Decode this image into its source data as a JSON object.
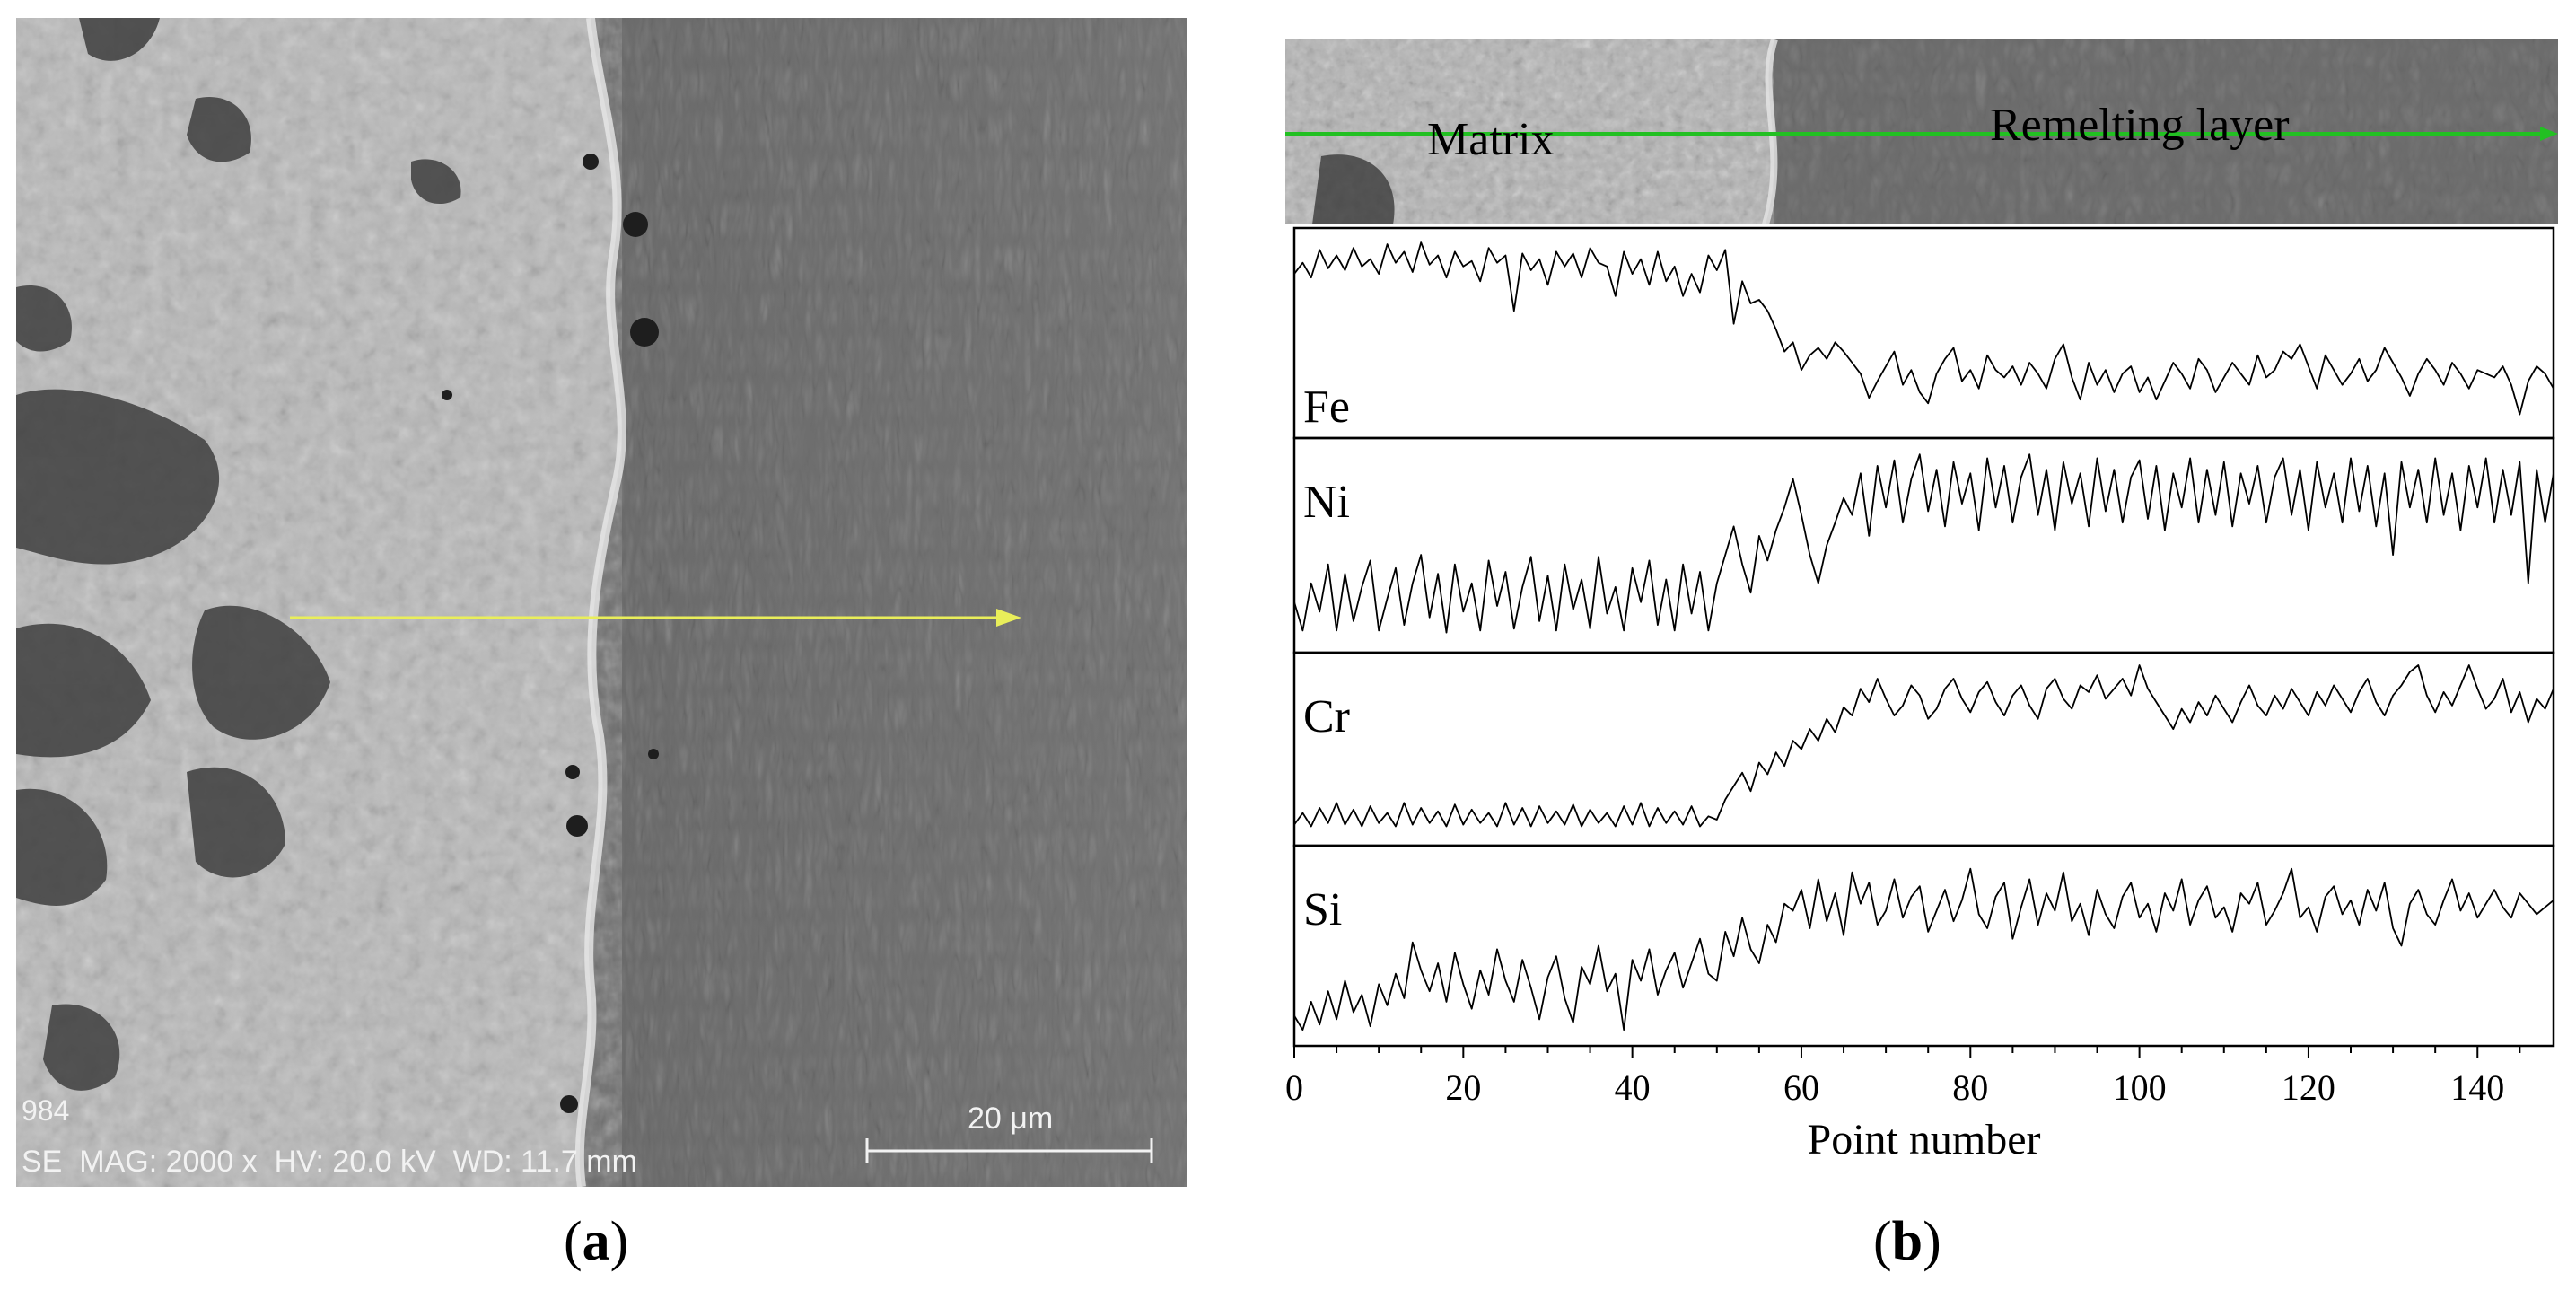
{
  "panel_a": {
    "label_open": "(",
    "label_letter": "a",
    "label_close": ")",
    "sem_info_id": "984",
    "sem_info_line": "SE  MAG: 2000 x  HV: 20.0 kV  WD: 11.7 mm",
    "scale_bar_label": "20 μm"
  },
  "panel_b": {
    "label_open": "(",
    "label_letter": "b",
    "label_close": ")",
    "region_left": "Matrix",
    "region_right": "Remelting layer",
    "scan_line_color": "#22c022"
  },
  "chart_data": {
    "type": "line",
    "xlabel": "Point number",
    "xlim": [
      0,
      149
    ],
    "xticks": [
      0,
      20,
      40,
      60,
      80,
      100,
      120,
      140
    ],
    "grid": false,
    "stacked_panels": true,
    "series": [
      {
        "name": "Fe",
        "values": [
          0.82,
          0.88,
          0.8,
          0.95,
          0.85,
          0.92,
          0.84,
          0.96,
          0.86,
          0.9,
          0.82,
          0.98,
          0.88,
          0.94,
          0.83,
          0.99,
          0.87,
          0.92,
          0.8,
          0.94,
          0.86,
          0.89,
          0.78,
          0.96,
          0.88,
          0.92,
          0.62,
          0.93,
          0.84,
          0.9,
          0.76,
          0.94,
          0.86,
          0.93,
          0.8,
          0.96,
          0.88,
          0.86,
          0.7,
          0.94,
          0.82,
          0.9,
          0.76,
          0.94,
          0.78,
          0.86,
          0.7,
          0.82,
          0.72,
          0.92,
          0.84,
          0.95,
          0.55,
          0.78,
          0.66,
          0.68,
          0.62,
          0.52,
          0.4,
          0.45,
          0.3,
          0.38,
          0.42,
          0.36,
          0.45,
          0.4,
          0.34,
          0.28,
          0.15,
          0.24,
          0.32,
          0.4,
          0.22,
          0.3,
          0.18,
          0.12,
          0.28,
          0.36,
          0.42,
          0.24,
          0.3,
          0.2,
          0.38,
          0.3,
          0.26,
          0.32,
          0.22,
          0.34,
          0.28,
          0.2,
          0.36,
          0.44,
          0.26,
          0.14,
          0.34,
          0.22,
          0.3,
          0.18,
          0.28,
          0.32,
          0.18,
          0.26,
          0.14,
          0.24,
          0.34,
          0.28,
          0.2,
          0.36,
          0.3,
          0.18,
          0.26,
          0.34,
          0.28,
          0.22,
          0.38,
          0.26,
          0.3,
          0.4,
          0.36,
          0.44,
          0.32,
          0.2,
          0.38,
          0.3,
          0.22,
          0.28,
          0.36,
          0.24,
          0.3,
          0.42,
          0.34,
          0.26,
          0.16,
          0.28,
          0.36,
          0.3,
          0.22,
          0.34,
          0.28,
          0.2,
          0.3,
          0.28,
          0.26,
          0.32,
          0.22,
          0.06,
          0.24,
          0.32,
          0.28,
          0.2
        ]
      },
      {
        "name": "Ni",
        "values": [
          0.2,
          0.05,
          0.3,
          0.15,
          0.4,
          0.05,
          0.35,
          0.1,
          0.28,
          0.42,
          0.05,
          0.22,
          0.38,
          0.08,
          0.3,
          0.45,
          0.12,
          0.35,
          0.04,
          0.4,
          0.15,
          0.3,
          0.05,
          0.42,
          0.18,
          0.36,
          0.06,
          0.28,
          0.44,
          0.1,
          0.34,
          0.05,
          0.4,
          0.16,
          0.32,
          0.06,
          0.44,
          0.14,
          0.28,
          0.05,
          0.38,
          0.2,
          0.42,
          0.08,
          0.32,
          0.05,
          0.4,
          0.14,
          0.36,
          0.05,
          0.3,
          0.45,
          0.6,
          0.4,
          0.25,
          0.55,
          0.42,
          0.58,
          0.7,
          0.85,
          0.66,
          0.45,
          0.3,
          0.5,
          0.62,
          0.75,
          0.66,
          0.88,
          0.55,
          0.92,
          0.7,
          0.95,
          0.62,
          0.85,
          0.98,
          0.68,
          0.9,
          0.6,
          0.94,
          0.72,
          0.88,
          0.58,
          0.96,
          0.7,
          0.92,
          0.62,
          0.86,
          0.98,
          0.66,
          0.9,
          0.58,
          0.94,
          0.72,
          0.88,
          0.6,
          0.96,
          0.68,
          0.9,
          0.62,
          0.86,
          0.95,
          0.64,
          0.92,
          0.58,
          0.88,
          0.7,
          0.96,
          0.62,
          0.9,
          0.66,
          0.94,
          0.6,
          0.88,
          0.72,
          0.92,
          0.62,
          0.86,
          0.96,
          0.66,
          0.9,
          0.58,
          0.94,
          0.7,
          0.88,
          0.62,
          0.96,
          0.68,
          0.92,
          0.6,
          0.88,
          0.45,
          0.94,
          0.7,
          0.9,
          0.62,
          0.96,
          0.66,
          0.88,
          0.58,
          0.92,
          0.7,
          0.96,
          0.62,
          0.9,
          0.66,
          0.94,
          0.3,
          0.9,
          0.62,
          0.88
        ]
      },
      {
        "name": "Cr",
        "values": [
          0.05,
          0.12,
          0.04,
          0.15,
          0.06,
          0.18,
          0.05,
          0.14,
          0.04,
          0.16,
          0.06,
          0.12,
          0.04,
          0.18,
          0.05,
          0.15,
          0.06,
          0.13,
          0.04,
          0.17,
          0.05,
          0.14,
          0.06,
          0.12,
          0.04,
          0.18,
          0.05,
          0.15,
          0.04,
          0.16,
          0.06,
          0.13,
          0.05,
          0.17,
          0.04,
          0.14,
          0.06,
          0.12,
          0.04,
          0.16,
          0.05,
          0.18,
          0.04,
          0.15,
          0.06,
          0.13,
          0.05,
          0.16,
          0.04,
          0.1,
          0.08,
          0.2,
          0.28,
          0.36,
          0.25,
          0.42,
          0.35,
          0.48,
          0.4,
          0.55,
          0.5,
          0.62,
          0.55,
          0.68,
          0.6,
          0.75,
          0.7,
          0.86,
          0.78,
          0.92,
          0.8,
          0.7,
          0.76,
          0.88,
          0.82,
          0.68,
          0.74,
          0.86,
          0.92,
          0.8,
          0.72,
          0.84,
          0.9,
          0.78,
          0.7,
          0.82,
          0.88,
          0.76,
          0.68,
          0.86,
          0.92,
          0.8,
          0.74,
          0.88,
          0.84,
          0.94,
          0.8,
          0.86,
          0.92,
          0.82,
          1.0,
          0.86,
          0.78,
          0.7,
          0.62,
          0.74,
          0.66,
          0.78,
          0.7,
          0.82,
          0.74,
          0.66,
          0.78,
          0.88,
          0.76,
          0.7,
          0.82,
          0.74,
          0.86,
          0.78,
          0.7,
          0.84,
          0.76,
          0.88,
          0.8,
          0.72,
          0.84,
          0.92,
          0.78,
          0.7,
          0.82,
          0.88,
          0.96,
          1.0,
          0.82,
          0.72,
          0.84,
          0.76,
          0.88,
          1.0,
          0.86,
          0.74,
          0.8,
          0.92,
          0.72,
          0.84,
          0.66,
          0.8,
          0.74,
          0.86
        ]
      },
      {
        "name": "Si",
        "values": [
          0.1,
          0.02,
          0.18,
          0.05,
          0.24,
          0.08,
          0.3,
          0.12,
          0.22,
          0.04,
          0.28,
          0.16,
          0.34,
          0.2,
          0.52,
          0.36,
          0.24,
          0.4,
          0.18,
          0.46,
          0.28,
          0.14,
          0.36,
          0.22,
          0.48,
          0.3,
          0.18,
          0.42,
          0.26,
          0.08,
          0.32,
          0.44,
          0.2,
          0.06,
          0.38,
          0.28,
          0.5,
          0.24,
          0.34,
          0.02,
          0.42,
          0.3,
          0.48,
          0.22,
          0.36,
          0.46,
          0.26,
          0.4,
          0.54,
          0.34,
          0.3,
          0.58,
          0.44,
          0.66,
          0.48,
          0.4,
          0.62,
          0.52,
          0.74,
          0.7,
          0.82,
          0.6,
          0.88,
          0.64,
          0.8,
          0.56,
          0.92,
          0.74,
          0.86,
          0.62,
          0.7,
          0.88,
          0.66,
          0.78,
          0.84,
          0.58,
          0.7,
          0.82,
          0.64,
          0.76,
          0.94,
          0.68,
          0.6,
          0.78,
          0.86,
          0.54,
          0.72,
          0.88,
          0.62,
          0.8,
          0.7,
          0.92,
          0.64,
          0.74,
          0.56,
          0.82,
          0.68,
          0.6,
          0.78,
          0.86,
          0.66,
          0.74,
          0.58,
          0.8,
          0.7,
          0.88,
          0.62,
          0.76,
          0.84,
          0.66,
          0.72,
          0.58,
          0.8,
          0.74,
          0.86,
          0.62,
          0.7,
          0.8,
          0.94,
          0.66,
          0.72,
          0.58,
          0.78,
          0.84,
          0.68,
          0.76,
          0.62,
          0.82,
          0.7,
          0.86,
          0.6,
          0.5,
          0.74,
          0.82,
          0.68,
          0.62,
          0.76,
          0.88,
          0.7,
          0.8,
          0.66,
          0.74,
          0.82,
          0.72,
          0.66,
          0.8,
          0.74,
          0.68,
          0.72,
          0.76
        ]
      }
    ]
  }
}
